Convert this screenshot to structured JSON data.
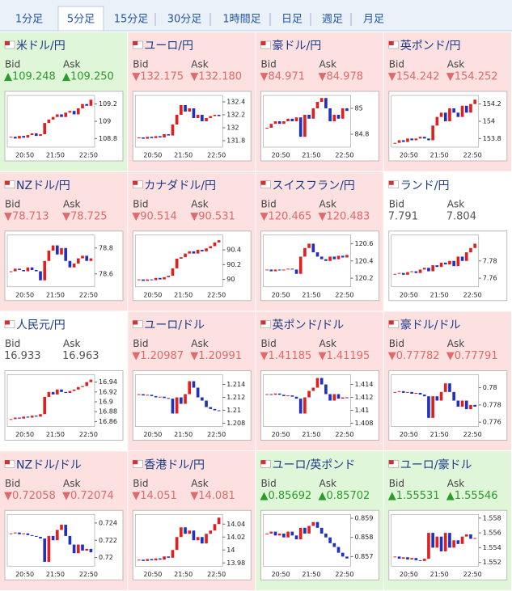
{
  "tabs": [
    "1分足",
    "5分足",
    "15分足",
    "30分足",
    "1時間足",
    "日足",
    "週足",
    "月足"
  ],
  "selected_tab": 1,
  "bid_label": "Bid",
  "ask_label": "Ask",
  "time_labels": [
    "20:50",
    "21:50",
    "22:50"
  ],
  "panels": [
    {
      "title": "米ドル/円",
      "trend": "up",
      "bid": "▲109.248",
      "ask": "▲109.250",
      "ylim": [
        108.7,
        109.3
      ],
      "yticks": [
        109.2,
        109,
        108.8
      ],
      "values": [
        108.82,
        108.8,
        108.83,
        108.81,
        108.84,
        108.86,
        108.83,
        108.85,
        108.98,
        109.02,
        109.05,
        109.08,
        109.05,
        109.1,
        109.12,
        109.08,
        109.15,
        109.2,
        109.18,
        109.25
      ]
    },
    {
      "title": "ユーロ/円",
      "trend": "down",
      "bid": "▼132.175",
      "ask": "▼132.180",
      "ylim": [
        131.7,
        132.5
      ],
      "yticks": [
        132.4,
        132.2,
        132,
        131.8
      ],
      "values": [
        131.85,
        131.83,
        131.86,
        131.84,
        131.87,
        131.85,
        131.9,
        131.88,
        132.05,
        132.2,
        132.35,
        132.25,
        132.3,
        132.15,
        132.2,
        132.1,
        132.15,
        132.18,
        132.2,
        132.18
      ]
    },
    {
      "title": "豪ドル/円",
      "trend": "down",
      "bid": "▼84.971",
      "ask": "▼84.978",
      "ylim": [
        84.7,
        85.1
      ],
      "yticks": [
        85,
        84.8
      ],
      "values": [
        84.85,
        84.88,
        84.9,
        84.88,
        84.9,
        84.92,
        84.9,
        84.93,
        84.78,
        84.95,
        84.92,
        85.0,
        85.05,
        85.08,
        85.0,
        84.9,
        84.95,
        84.92,
        85.0,
        84.98
      ]
    },
    {
      "title": "英ポンド/円",
      "trend": "down",
      "bid": "▼154.242",
      "ask": "▼154.252",
      "ylim": [
        153.7,
        154.3
      ],
      "yticks": [
        154.2,
        154,
        153.8
      ],
      "values": [
        153.75,
        153.78,
        153.76,
        153.8,
        153.78,
        153.8,
        153.82,
        153.8,
        153.78,
        153.95,
        154.05,
        154.1,
        154.0,
        154.15,
        154.1,
        154.05,
        154.18,
        154.1,
        154.2,
        154.25
      ]
    },
    {
      "title": "NZドル/円",
      "trend": "down",
      "bid": "▼78.713",
      "ask": "▼78.725",
      "ylim": [
        78.5,
        78.9
      ],
      "yticks": [
        78.8,
        78.6
      ],
      "values": [
        78.62,
        78.64,
        78.63,
        78.62,
        78.65,
        78.63,
        78.62,
        78.55,
        78.7,
        78.78,
        78.82,
        78.75,
        78.8,
        78.7,
        78.65,
        78.68,
        78.72,
        78.74,
        78.7,
        78.72
      ]
    },
    {
      "title": "カナダドル/円",
      "trend": "down",
      "bid": "▼90.514",
      "ask": "▼90.531",
      "ylim": [
        89.9,
        90.6
      ],
      "yticks": [
        90.4,
        90.2,
        90
      ],
      "values": [
        90.0,
        89.98,
        90.0,
        89.99,
        90.02,
        90.0,
        90.03,
        90.05,
        90.15,
        90.28,
        90.3,
        90.35,
        90.38,
        90.35,
        90.4,
        90.38,
        90.42,
        90.45,
        90.5,
        90.53
      ]
    },
    {
      "title": "スイスフラン/円",
      "trend": "down",
      "bid": "▼120.465",
      "ask": "▼120.483",
      "ylim": [
        120.1,
        120.7
      ],
      "yticks": [
        120.6,
        120.4,
        120.2
      ],
      "values": [
        120.3,
        120.28,
        120.3,
        120.29,
        120.3,
        120.31,
        120.3,
        120.25,
        120.45,
        120.55,
        120.6,
        120.5,
        120.45,
        120.42,
        120.4,
        120.45,
        120.42,
        120.46,
        120.44,
        120.47
      ]
    },
    {
      "title": "ランド/円",
      "trend": "flat",
      "bid": "7.791",
      "ask": "7.804",
      "ylim": [
        7.75,
        7.81
      ],
      "yticks": [
        7.78,
        7.76
      ],
      "values": [
        7.765,
        7.766,
        7.764,
        7.767,
        7.768,
        7.766,
        7.77,
        7.772,
        7.768,
        7.775,
        7.773,
        7.778,
        7.776,
        7.78,
        7.774,
        7.785,
        7.78,
        7.79,
        7.795,
        7.8
      ]
    },
    {
      "title": "人民元/円",
      "trend": "flat",
      "bid": "16.933",
      "ask": "16.963",
      "ylim": [
        16.85,
        16.955
      ],
      "yticks": [
        16.94,
        16.92,
        16.9,
        16.88,
        16.86
      ],
      "values": [
        16.865,
        16.868,
        16.866,
        16.87,
        16.868,
        16.872,
        16.87,
        16.875,
        16.91,
        16.92,
        16.915,
        16.925,
        16.92,
        16.918,
        16.922,
        16.925,
        16.93,
        16.932,
        16.94,
        16.945
      ]
    },
    {
      "title": "ユーロ/ドル",
      "trend": "down",
      "bid": "▼1.20987",
      "ask": "▼1.20991",
      "ylim": [
        1.2075,
        1.2155
      ],
      "yticks": [
        1.214,
        1.212,
        1.21,
        1.208
      ],
      "values": [
        1.2125,
        1.2123,
        1.2124,
        1.2122,
        1.212,
        1.2121,
        1.2119,
        1.2118,
        1.2095,
        1.212,
        1.211,
        1.2125,
        1.2145,
        1.2135,
        1.212,
        1.2115,
        1.2105,
        1.2102,
        1.21,
        1.2099
      ]
    },
    {
      "title": "英ポンド/ドル",
      "trend": "down",
      "bid": "▼1.41185",
      "ask": "▼1.41195",
      "ylim": [
        1.4075,
        1.4155
      ],
      "yticks": [
        1.414,
        1.412,
        1.41,
        1.408
      ],
      "values": [
        1.4125,
        1.4124,
        1.4126,
        1.4124,
        1.4122,
        1.4123,
        1.4121,
        1.4118,
        1.4095,
        1.412,
        1.413,
        1.4135,
        1.415,
        1.414,
        1.4125,
        1.4115,
        1.4125,
        1.4118,
        1.412,
        1.4119
      ]
    },
    {
      "title": "豪ドル/ドル",
      "trend": "down",
      "bid": "▼0.77782",
      "ask": "▼0.77791",
      "ylim": [
        0.7755,
        0.7815
      ],
      "yticks": [
        0.78,
        0.778,
        0.776
      ],
      "values": [
        0.7795,
        0.7796,
        0.7794,
        0.7795,
        0.7793,
        0.7794,
        0.7792,
        0.779,
        0.7765,
        0.779,
        0.7785,
        0.7795,
        0.7805,
        0.7795,
        0.7785,
        0.7778,
        0.7785,
        0.7775,
        0.778,
        0.7778
      ]
    },
    {
      "title": "NZドル/ドル",
      "trend": "down",
      "bid": "▼0.72058",
      "ask": "▼0.72074",
      "ylim": [
        0.719,
        0.725
      ],
      "yticks": [
        0.724,
        0.722,
        0.72
      ],
      "values": [
        0.7228,
        0.7229,
        0.7227,
        0.7228,
        0.7226,
        0.7225,
        0.7224,
        0.7222,
        0.7195,
        0.7225,
        0.722,
        0.7232,
        0.7238,
        0.7225,
        0.7215,
        0.7205,
        0.7215,
        0.7208,
        0.721,
        0.7206
      ]
    },
    {
      "title": "香港ドル/円",
      "trend": "down",
      "bid": "▼14.051",
      "ask": "▼14.081",
      "ylim": [
        13.975,
        14.055
      ],
      "yticks": [
        14.04,
        14.02,
        14,
        13.98
      ],
      "values": [
        13.985,
        13.983,
        13.986,
        13.984,
        13.987,
        13.985,
        13.99,
        13.988,
        14.0,
        14.02,
        14.035,
        14.025,
        14.03,
        14.015,
        14.02,
        14.01,
        14.025,
        14.03,
        14.04,
        14.05
      ]
    },
    {
      "title": "ユーロ/英ポンド",
      "trend": "up",
      "bid": "▲0.85692",
      "ask": "▲0.85702",
      "ylim": [
        0.8565,
        0.8592
      ],
      "yticks": [
        0.859,
        0.858,
        0.857
      ],
      "values": [
        0.8582,
        0.8583,
        0.8581,
        0.8582,
        0.858,
        0.8583,
        0.8581,
        0.8579,
        0.8585,
        0.8582,
        0.8586,
        0.8588,
        0.8585,
        0.8582,
        0.858,
        0.8577,
        0.8575,
        0.8572,
        0.857,
        0.8569
      ]
    },
    {
      "title": "ユーロ/豪ドル",
      "trend": "up",
      "bid": "▲1.55531",
      "ask": "▲1.55546",
      "ylim": [
        1.5515,
        1.5585
      ],
      "yticks": [
        1.558,
        1.556,
        1.554,
        1.552
      ],
      "values": [
        1.5528,
        1.5525,
        1.5527,
        1.5524,
        1.5526,
        1.5523,
        1.5522,
        1.5525,
        1.556,
        1.554,
        1.5555,
        1.5535,
        1.556,
        1.554,
        1.555,
        1.5545,
        1.5555,
        1.5558,
        1.5552,
        1.5553
      ]
    }
  ]
}
